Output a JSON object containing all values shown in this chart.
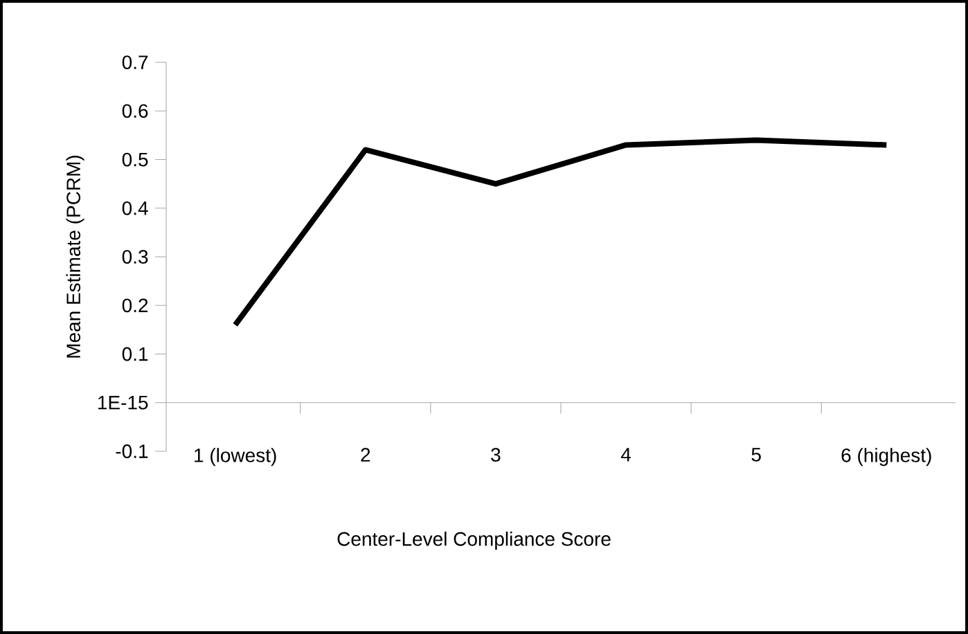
{
  "chart_data": {
    "type": "line",
    "xlabel": "Center-Level Compliance Score",
    "ylabel": "Mean Estimate (PCRM)",
    "categories": [
      "1 (lowest)",
      "2",
      "3",
      "4",
      "5",
      "6 (highest)"
    ],
    "series": [
      {
        "color": "#000000",
        "values": [
          0.16,
          0.52,
          0.45,
          0.53,
          0.54,
          0.53
        ]
      }
    ],
    "ylim": [
      -0.1,
      0.7
    ],
    "yticks": [
      -0.1,
      {
        "value": 0,
        "label": "1E-15"
      },
      0.1,
      0.2,
      0.3,
      0.4,
      0.5,
      0.6,
      0.7
    ],
    "marker": "none",
    "line_style": "solid"
  }
}
